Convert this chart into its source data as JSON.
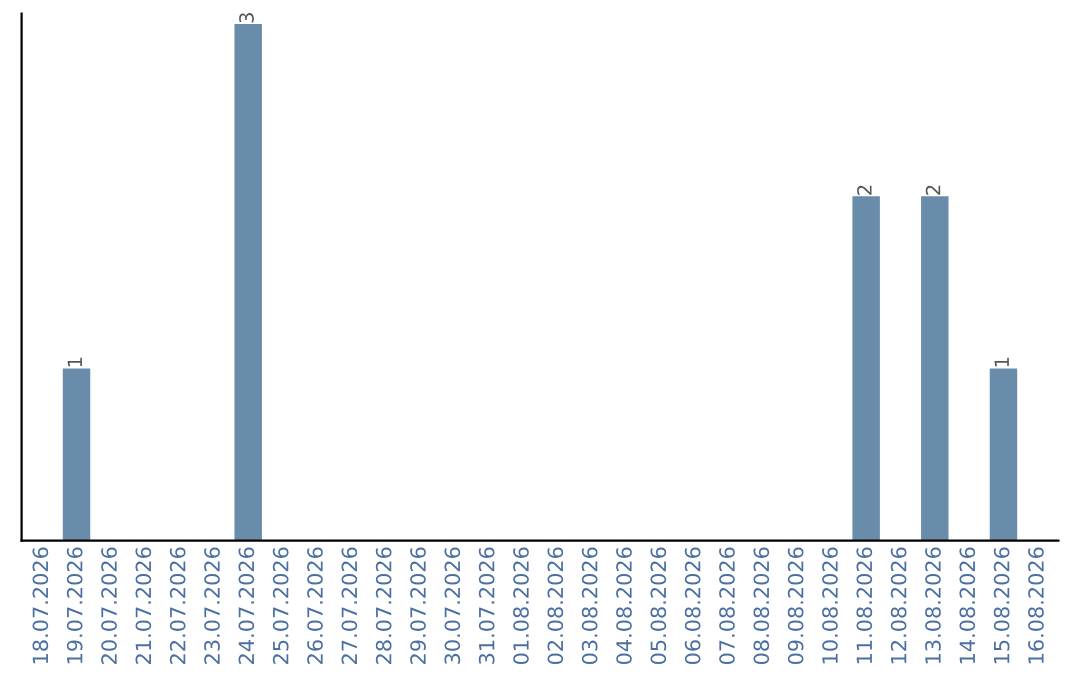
{
  "chart_data": {
    "type": "bar",
    "categories": [
      "18.07.2026",
      "19.07.2026",
      "20.07.2026",
      "21.07.2026",
      "22.07.2026",
      "23.07.2026",
      "24.07.2026",
      "25.07.2026",
      "26.07.2026",
      "27.07.2026",
      "28.07.2026",
      "29.07.2026",
      "30.07.2026",
      "31.07.2026",
      "01.08.2026",
      "02.08.2026",
      "03.08.2026",
      "04.08.2026",
      "05.08.2026",
      "06.08.2026",
      "07.08.2026",
      "08.08.2026",
      "09.08.2026",
      "10.08.2026",
      "11.08.2026",
      "12.08.2026",
      "13.08.2026",
      "14.08.2026",
      "15.08.2026",
      "16.08.2026"
    ],
    "values": [
      null,
      1,
      null,
      null,
      null,
      null,
      3,
      null,
      null,
      null,
      null,
      null,
      null,
      null,
      null,
      null,
      null,
      null,
      null,
      null,
      null,
      null,
      null,
      null,
      2,
      null,
      2,
      null,
      1,
      null
    ],
    "color": "#6a8cab",
    "data_labels": true,
    "grid": false,
    "legend": false
  }
}
